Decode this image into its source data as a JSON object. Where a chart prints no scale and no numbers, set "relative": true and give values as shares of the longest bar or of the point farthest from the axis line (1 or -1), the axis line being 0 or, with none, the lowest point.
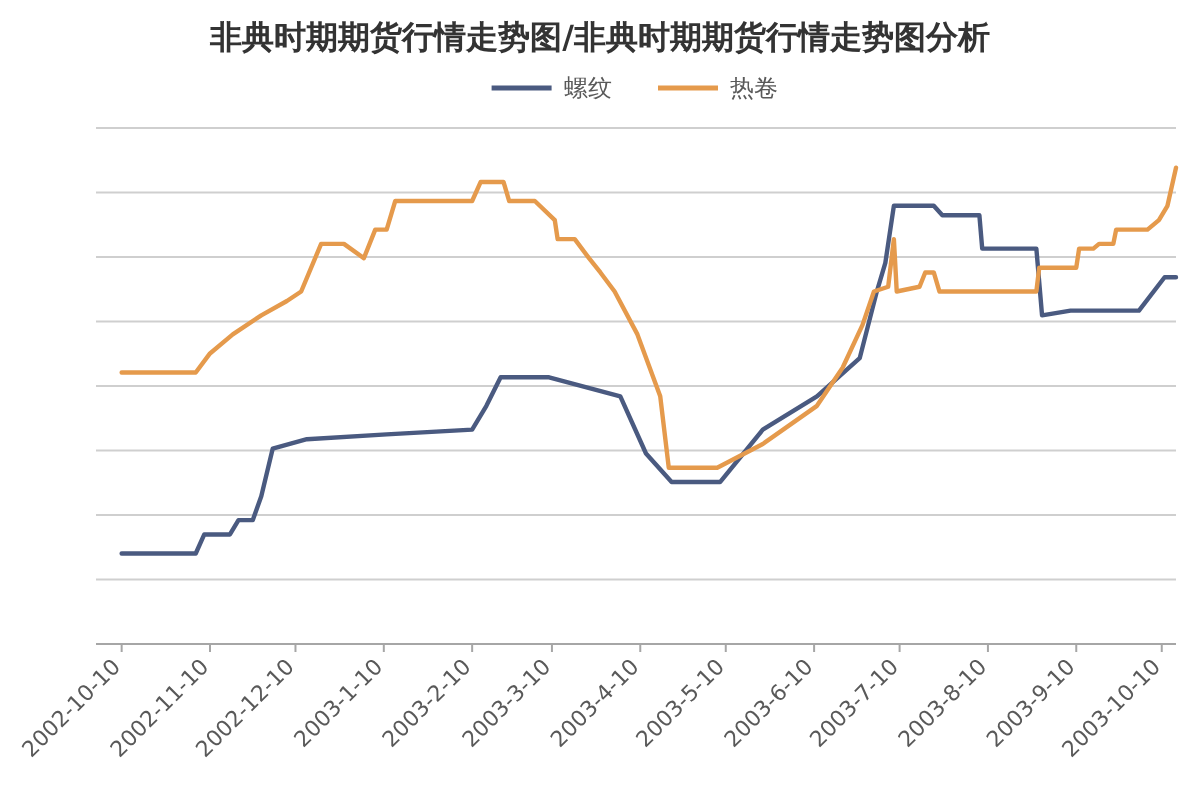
{
  "chart_data": {
    "type": "line",
    "title": "非典时期期货行情走势图/非典时期期货行情走势图分析",
    "relative": true,
    "xlim": [
      "2002-10-01",
      "2003-10-15"
    ],
    "xticks": [
      {
        "value": "2002-10-10",
        "label": "2002-10-10"
      },
      {
        "value": "2002-11-10",
        "label": "2002-11-10"
      },
      {
        "value": "2002-12-10",
        "label": "2002-12-10"
      },
      {
        "value": "2003-01-10",
        "label": "2003-1-10"
      },
      {
        "value": "2003-02-10",
        "label": "2003-2-10"
      },
      {
        "value": "2003-03-10",
        "label": "2003-3-10"
      },
      {
        "value": "2003-04-10",
        "label": "2003-4-10"
      },
      {
        "value": "2003-05-10",
        "label": "2003-5-10"
      },
      {
        "value": "2003-06-10",
        "label": "2003-6-10"
      },
      {
        "value": "2003-07-10",
        "label": "2003-7-10"
      },
      {
        "value": "2003-08-10",
        "label": "2003-8-10"
      },
      {
        "value": "2003-09-10",
        "label": "2003-9-10"
      },
      {
        "value": "2003-10-10",
        "label": "2003-10-10"
      }
    ],
    "grid": "y",
    "legend": "top",
    "tick_labels": "x",
    "series": [
      {
        "name": "螺纹",
        "color": "#4a5a80",
        "x": [
          "2002-10-10",
          "2002-11-05",
          "2002-11-08",
          "2002-11-17",
          "2002-11-20",
          "2002-11-25",
          "2002-11-28",
          "2002-12-02",
          "2002-12-14",
          "2003-01-11",
          "2003-02-10",
          "2003-02-15",
          "2003-02-20",
          "2003-03-09",
          "2003-04-03",
          "2003-04-12",
          "2003-04-21",
          "2003-05-08",
          "2003-05-23",
          "2003-06-11",
          "2003-06-26",
          "2003-07-02",
          "2003-07-05",
          "2003-07-08",
          "2003-07-22",
          "2003-07-25",
          "2003-08-07",
          "2003-08-08",
          "2003-08-27",
          "2003-08-29",
          "2003-09-08",
          "2003-10-02",
          "2003-10-11",
          "2003-10-15"
        ],
        "values": [
          0.19,
          0.19,
          0.23,
          0.23,
          0.26,
          0.26,
          0.31,
          0.41,
          0.43,
          0.44,
          0.45,
          0.5,
          0.56,
          0.56,
          0.52,
          0.4,
          0.34,
          0.34,
          0.45,
          0.52,
          0.6,
          0.74,
          0.8,
          0.92,
          0.92,
          0.9,
          0.9,
          0.83,
          0.83,
          0.69,
          0.7,
          0.7,
          0.77,
          0.77
        ]
      },
      {
        "name": "热卷",
        "color": "#e59a4c",
        "x": [
          "2002-10-10",
          "2002-11-05",
          "2002-11-10",
          "2002-11-18",
          "2002-11-28",
          "2002-12-07",
          "2002-12-12",
          "2002-12-19",
          "2002-12-27",
          "2003-01-03",
          "2003-01-07",
          "2003-01-11",
          "2003-01-14",
          "2003-02-10",
          "2003-02-13",
          "2003-02-21",
          "2003-02-23",
          "2003-03-04",
          "2003-03-11",
          "2003-03-12",
          "2003-03-18",
          "2003-03-23",
          "2003-03-27",
          "2003-04-01",
          "2003-04-09",
          "2003-04-17",
          "2003-04-20",
          "2003-05-07",
          "2003-05-23",
          "2003-06-11",
          "2003-06-20",
          "2003-06-27",
          "2003-07-01",
          "2003-07-06",
          "2003-07-08",
          "2003-07-09",
          "2003-07-17",
          "2003-07-19",
          "2003-07-22",
          "2003-07-24",
          "2003-08-27",
          "2003-08-28",
          "2003-09-10",
          "2003-09-11",
          "2003-09-16",
          "2003-09-18",
          "2003-09-23",
          "2003-09-24",
          "2003-10-05",
          "2003-10-09",
          "2003-10-12",
          "2003-10-15"
        ],
        "values": [
          0.57,
          0.57,
          0.61,
          0.65,
          0.69,
          0.72,
          0.74,
          0.84,
          0.84,
          0.81,
          0.87,
          0.87,
          0.93,
          0.93,
          0.97,
          0.97,
          0.93,
          0.93,
          0.89,
          0.85,
          0.85,
          0.81,
          0.78,
          0.74,
          0.65,
          0.52,
          0.37,
          0.37,
          0.42,
          0.5,
          0.58,
          0.67,
          0.74,
          0.75,
          0.85,
          0.74,
          0.75,
          0.78,
          0.78,
          0.74,
          0.74,
          0.79,
          0.79,
          0.83,
          0.83,
          0.84,
          0.84,
          0.87,
          0.87,
          0.89,
          0.92,
          1.0
        ]
      }
    ]
  }
}
